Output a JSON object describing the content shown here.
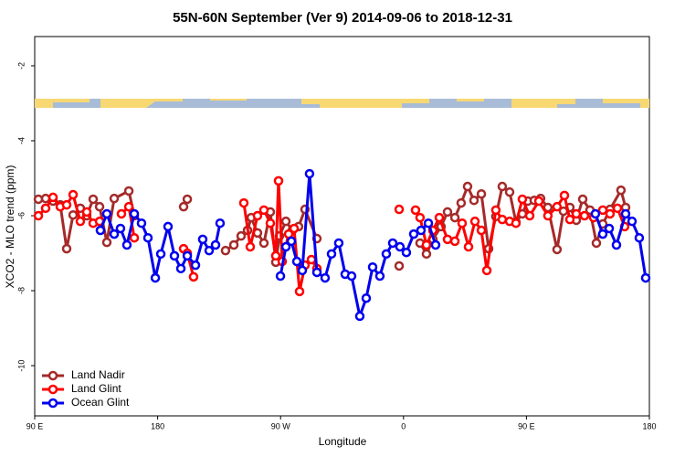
{
  "chart_data": {
    "type": "line",
    "title": "55N-60N September (Ver 9)   2014-09-06 to 2018-12-31",
    "x_label": "Longitude",
    "y_label": "XCO2 - MLO trend (ppm)",
    "xlim": [
      90,
      540
    ],
    "xticks": [
      {
        "value": 90,
        "label": "90 E"
      },
      {
        "value": 180,
        "label": "180"
      },
      {
        "value": 270,
        "label": "90 W"
      },
      {
        "value": 360,
        "label": "0"
      },
      {
        "value": 450,
        "label": "90 E"
      },
      {
        "value": 540,
        "label": "180"
      }
    ],
    "ylim": [
      -11.34,
      -1.22
    ],
    "yticks": [
      -2,
      -4,
      -6,
      -8,
      -10
    ],
    "legend": "lower left",
    "series": [
      {
        "name": "Land Nadir",
        "color": "#a52a2a",
        "x": [
          92.7,
          98.0,
          103.4,
          108.7,
          113.4,
          118.1,
          123.4,
          128.1,
          132.8,
          137.5,
          142.8,
          148.2,
          158.9,
          162.9,
          null,
          199.0,
          201.7,
          null,
          229.7,
          235.8,
          241.1,
          245.8,
          248.5,
          253.1,
          257.8,
          262.5,
          266.5,
          269.2,
          273.9,
          278.6,
          283.2,
          287.9,
          296.6,
          null,
          356.8,
          null,
          372.1,
          376.8,
          381.5,
          387.5,
          392.2,
          397.6,
          402.2,
          406.9,
          411.6,
          417.0,
          422.3,
          427.6,
          432.3,
          437.7,
          442.3,
          447.0,
          451.0,
          455.7,
          460.4,
          465.7,
          472.4,
          477.1,
          481.8,
          486.5,
          491.2,
          496.5,
          501.2,
          505.9,
          511.2,
          519.2,
          522.6
        ],
        "values": [
          -5.56,
          -5.54,
          -5.61,
          -5.71,
          -6.88,
          -5.98,
          -5.8,
          -6.0,
          -5.56,
          -5.76,
          -6.71,
          -5.54,
          -5.34,
          -6.0,
          null,
          -5.76,
          -5.56,
          null,
          -6.93,
          -6.78,
          -6.54,
          -6.39,
          -6.05,
          -6.46,
          -6.73,
          -5.9,
          -7.24,
          -6.54,
          -6.15,
          -6.39,
          -6.29,
          -5.83,
          -6.61,
          null,
          -7.34,
          null,
          -6.73,
          -7.02,
          -6.63,
          -6.29,
          -5.9,
          -6.05,
          -5.66,
          -5.22,
          -5.59,
          -5.42,
          -6.88,
          -6.02,
          -5.22,
          -5.37,
          -6.17,
          -5.95,
          -5.61,
          -5.59,
          -5.54,
          -5.78,
          -6.9,
          -5.88,
          -5.78,
          -6.12,
          -5.56,
          -5.85,
          -6.73,
          -6.22,
          -5.83,
          -5.32,
          -5.78
        ]
      },
      {
        "name": "Land Glint",
        "color": "#ff0000",
        "x": [
          92.7,
          98.0,
          103.4,
          108.7,
          113.4,
          118.1,
          123.4,
          128.1,
          132.8,
          137.5,
          null,
          153.5,
          158.9,
          162.9,
          null,
          199.0,
          201.7,
          206.3,
          null,
          243.1,
          247.8,
          253.1,
          257.8,
          262.5,
          266.5,
          268.5,
          271.2,
          275.9,
          279.9,
          283.9,
          287.9,
          292.6,
          296.6,
          null,
          356.8,
          null,
          368.8,
          372.1,
          376.8,
          381.5,
          386.2,
          392.2,
          397.6,
          402.9,
          407.6,
          412.3,
          417.0,
          421.0,
          427.6,
          432.3,
          437.7,
          442.3,
          447.0,
          452.4,
          459.1,
          465.7,
          472.4,
          477.8,
          481.8,
          486.5,
          492.5,
          499.2,
          505.9,
          511.2,
          516.6,
          521.9
        ],
        "values": [
          -6.0,
          -5.8,
          -5.51,
          -5.76,
          -5.71,
          -5.44,
          -6.15,
          -5.9,
          -6.2,
          -6.15,
          null,
          -5.95,
          -5.76,
          -6.59,
          null,
          -6.88,
          -7.0,
          -7.63,
          null,
          -5.66,
          -6.83,
          -6.0,
          -5.85,
          -6.2,
          -7.07,
          -5.07,
          -7.22,
          -6.49,
          -6.34,
          -8.02,
          -7.32,
          -7.17,
          -7.41,
          null,
          -5.83,
          null,
          -5.85,
          -6.05,
          -6.78,
          -6.39,
          -6.05,
          -6.63,
          -6.68,
          -6.2,
          -6.83,
          -6.15,
          -6.39,
          -7.46,
          -5.85,
          -6.1,
          -6.15,
          -6.2,
          -5.56,
          -6.0,
          -5.61,
          -6.0,
          -5.76,
          -5.46,
          -6.1,
          -5.95,
          -6.0,
          -6.05,
          -5.85,
          -5.95,
          -5.8,
          -6.29
        ]
      },
      {
        "name": "Ocean Glint",
        "color": "#0000ee",
        "x": [
          138.1,
          142.8,
          148.2,
          152.8,
          157.5,
          162.9,
          168.2,
          172.9,
          178.3,
          182.3,
          187.6,
          192.3,
          197.0,
          201.7,
          207.7,
          213.0,
          217.7,
          222.4,
          225.7,
          null,
          269.9,
          273.9,
          277.9,
          281.9,
          285.9,
          291.2,
          296.6,
          302.6,
          307.3,
          312.6,
          317.3,
          322.0,
          328.0,
          332.7,
          337.4,
          342.7,
          347.4,
          352.1,
          357.4,
          362.1,
          367.5,
          372.8,
          378.2,
          383.5,
          null,
          500.5,
          505.9,
          510.6,
          515.9,
          522.6,
          527.3,
          532.6,
          537.3
        ],
        "values": [
          -6.39,
          -5.95,
          -6.49,
          -6.34,
          -6.78,
          -5.95,
          -6.2,
          -6.59,
          -7.66,
          -7.02,
          -6.29,
          -7.07,
          -7.41,
          -7.07,
          -7.32,
          -6.63,
          -6.93,
          -6.78,
          -6.2,
          null,
          -7.61,
          -6.83,
          -6.68,
          -7.22,
          -7.46,
          -4.88,
          -7.51,
          -7.66,
          -7.02,
          -6.73,
          -7.56,
          -7.61,
          -8.68,
          -8.2,
          -7.37,
          -7.61,
          -7.02,
          -6.73,
          -6.83,
          -6.98,
          -6.49,
          -6.39,
          -6.2,
          -6.78,
          null,
          -5.95,
          -6.49,
          -6.34,
          -6.78,
          -5.95,
          -6.15,
          -6.59,
          -7.66
        ]
      }
    ]
  }
}
